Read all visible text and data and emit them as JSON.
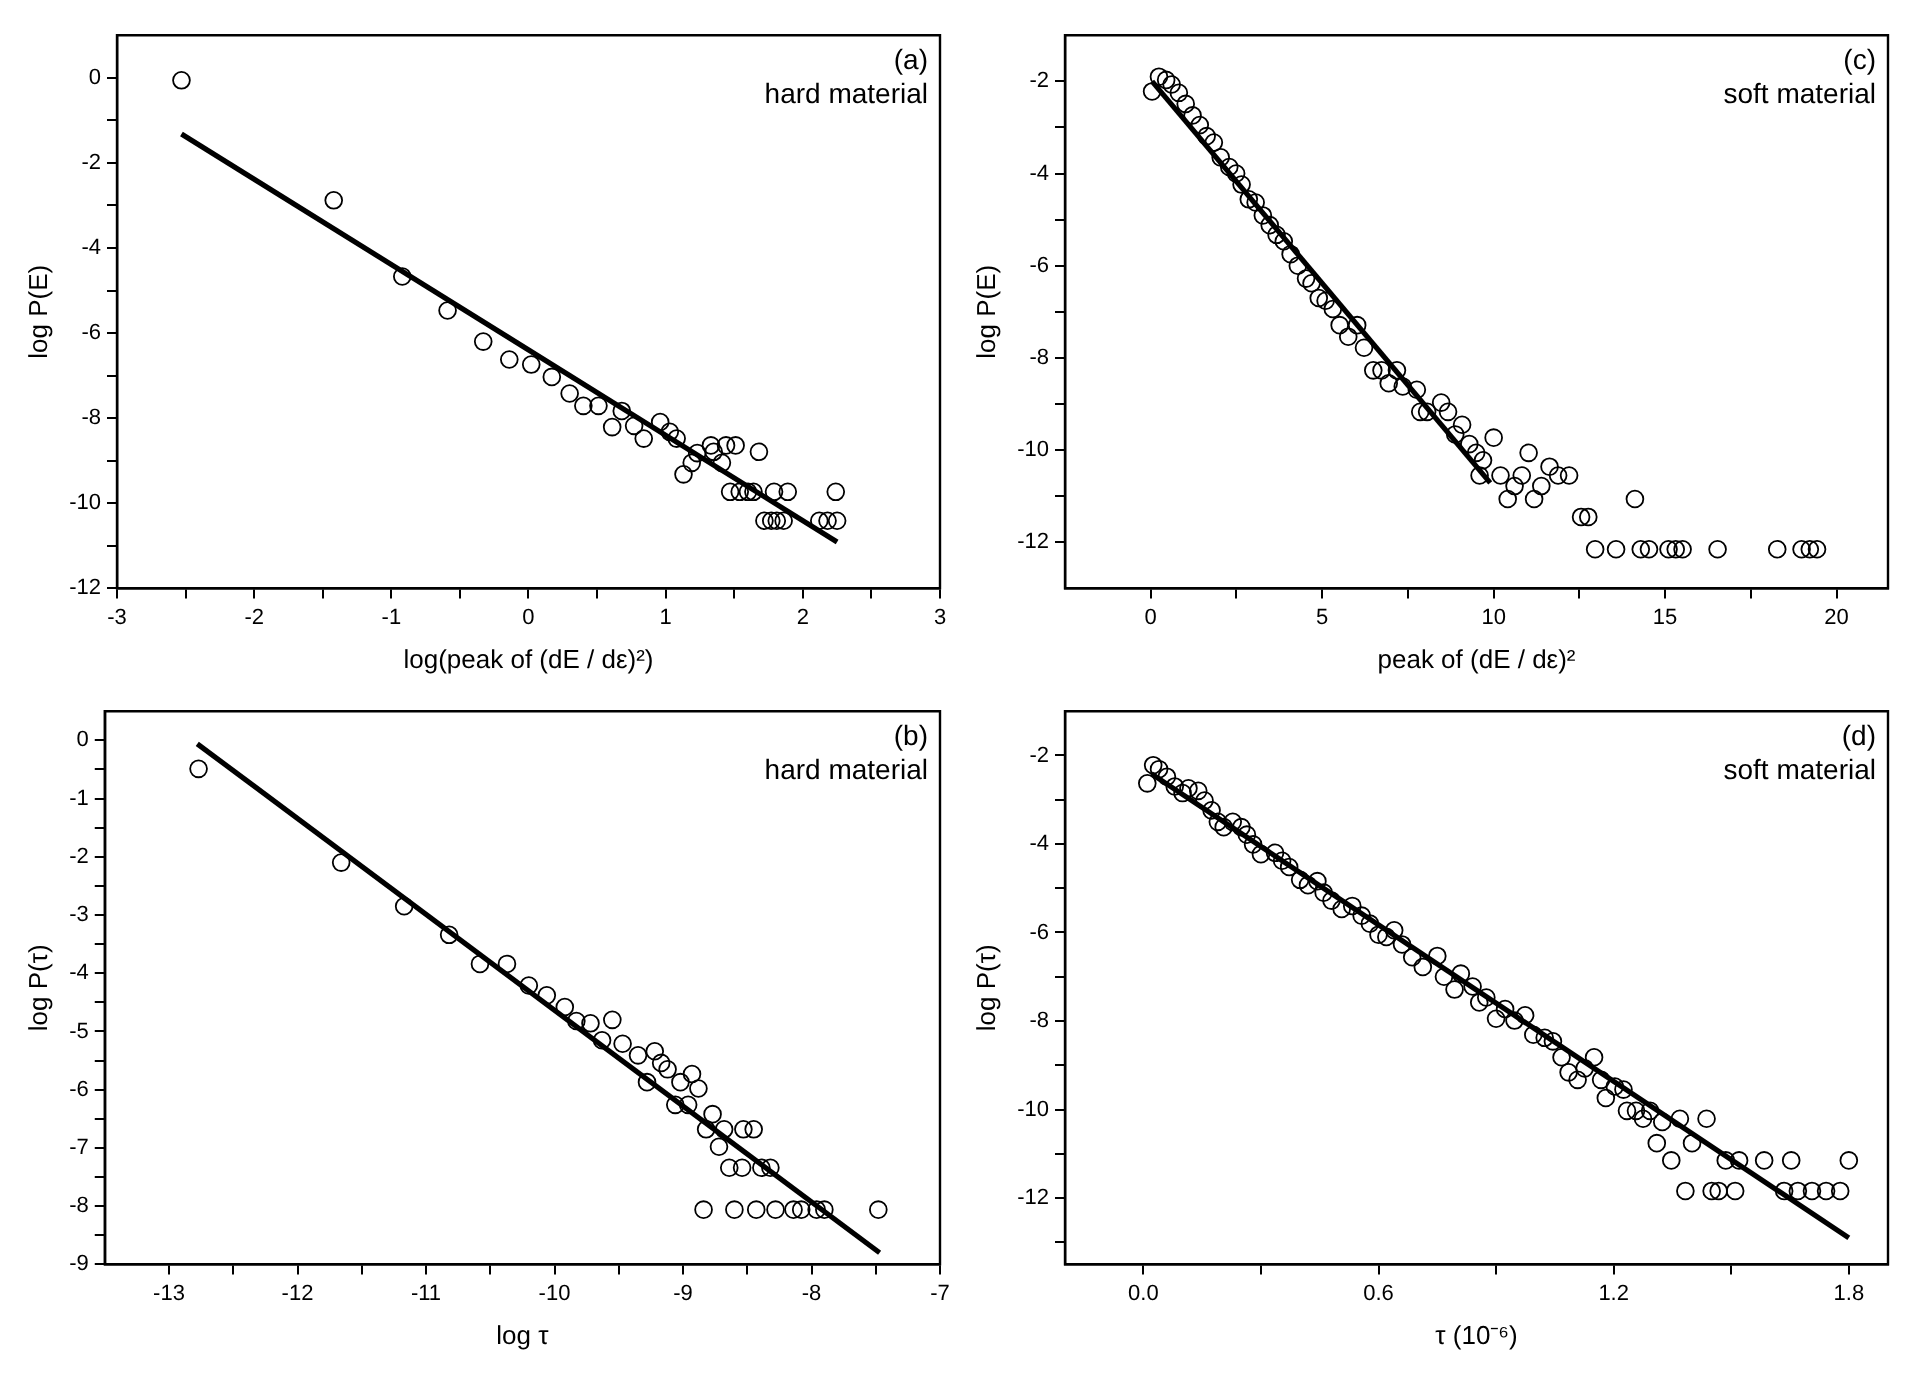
{
  "chart_data": [
    {
      "type": "scatter",
      "xlabel": "log(peak of (dE / dε)²)",
      "ylabel": "log P(E)",
      "annotations": [
        "(a)",
        "hard material"
      ],
      "legend": false,
      "grid": false,
      "xlim": [
        -3,
        3
      ],
      "ylim": [
        -12,
        1
      ],
      "xticks": [
        -3,
        {
          "value": -2.5,
          "label": null
        },
        -2,
        {
          "value": -1.5,
          "label": null
        },
        -1,
        {
          "value": -0.5,
          "label": null
        },
        0,
        {
          "value": 0.5,
          "label": null
        },
        1,
        {
          "value": 1.5,
          "label": null
        },
        2,
        {
          "value": 2.5,
          "label": null
        },
        3
      ],
      "yticks": [
        -12,
        {
          "value": -11,
          "label": null
        },
        -10,
        {
          "value": -9,
          "label": null
        },
        -8,
        {
          "value": -7,
          "label": null
        },
        -6,
        {
          "value": -5,
          "label": null
        },
        -4,
        {
          "value": -3,
          "label": null
        },
        -2,
        {
          "value": -1,
          "label": null
        },
        0
      ],
      "series": [
        {
          "marker": "circle",
          "color": "#000000",
          "x": [
            -2.53,
            -1.42,
            -0.92,
            -0.59,
            -0.33,
            -0.14,
            0.02,
            0.17,
            0.3,
            0.4,
            0.51,
            0.61,
            0.68,
            0.77,
            0.84,
            0.96,
            1.03,
            1.08,
            1.13,
            1.19,
            1.23,
            1.33,
            1.35,
            1.41,
            1.44,
            1.51,
            1.47,
            1.54,
            1.6,
            1.64,
            1.68,
            1.72,
            1.77,
            1.81,
            1.86,
            1.79,
            1.89,
            2.12,
            2.18,
            2.24,
            2.25
          ],
          "values": [
            -0.06,
            -2.88,
            -4.67,
            -5.47,
            -6.2,
            -6.62,
            -6.74,
            -7.03,
            -7.42,
            -7.71,
            -7.71,
            -8.21,
            -7.83,
            -8.18,
            -8.48,
            -8.09,
            -8.32,
            -8.48,
            -9.32,
            -9.05,
            -8.82,
            -8.64,
            -8.79,
            -9.05,
            -8.64,
            -8.64,
            -9.73,
            -9.73,
            -9.73,
            -9.73,
            -8.79,
            -10.41,
            -10.41,
            -10.41,
            -10.41,
            -9.73,
            -9.73,
            -10.41,
            -10.41,
            -9.73,
            -10.41
          ]
        },
        {
          "type": "line",
          "marker": "none",
          "color": "#000000",
          "line_style": "solid",
          "x": [
            -2.53,
            2.25
          ],
          "values": [
            -1.32,
            -10.91
          ]
        }
      ]
    },
    {
      "type": "scatter",
      "xlabel": "peak of (dE / dε)²",
      "ylabel": "log P(E)",
      "annotations": [
        "(c)",
        "soft material"
      ],
      "legend": false,
      "grid": false,
      "xlim": [
        -2.5,
        21.5
      ],
      "ylim": [
        -13,
        -1
      ],
      "xticks": [
        0,
        {
          "value": 2.5,
          "label": null
        },
        5,
        {
          "value": 7.5,
          "label": null
        },
        10,
        {
          "value": 12.5,
          "label": null
        },
        15,
        {
          "value": 17.5,
          "label": null
        },
        20
      ],
      "yticks": [
        -12,
        {
          "value": -11,
          "label": null
        },
        -10,
        {
          "value": -9,
          "label": null
        },
        -8,
        {
          "value": -7,
          "label": null
        },
        -6,
        {
          "value": -5,
          "label": null
        },
        -4,
        {
          "value": -3,
          "label": null
        },
        -2
      ],
      "series": [
        {
          "marker": "circle",
          "color": "#000000",
          "x": [
            0.04,
            0.24,
            0.45,
            0.61,
            0.82,
            1.02,
            1.22,
            1.43,
            1.63,
            1.84,
            2.04,
            2.29,
            2.49,
            2.65,
            2.86,
            3.06,
            3.27,
            3.47,
            3.67,
            3.88,
            4.08,
            4.29,
            4.53,
            4.69,
            4.9,
            5.1,
            5.31,
            5.51,
            5.76,
            6.02,
            6.22,
            6.49,
            6.73,
            6.94,
            7.18,
            7.35,
            7.76,
            7.86,
            8.06,
            8.47,
            8.67,
            9.08,
            8.88,
            9.29,
            9.49,
            9.69,
            9.59,
            10.0,
            10.2,
            10.41,
            10.61,
            10.82,
            11.02,
            11.18,
            11.39,
            11.63,
            11.88,
            12.2,
            12.55,
            12.76,
            12.96,
            13.57,
            14.12,
            14.29,
            14.53,
            15.1,
            15.31,
            15.51,
            16.53,
            18.27,
            18.98,
            19.22,
            19.43
          ],
          "values": [
            -2.22,
            -1.9,
            -1.97,
            -2.07,
            -2.25,
            -2.49,
            -2.74,
            -2.95,
            -3.19,
            -3.33,
            -3.65,
            -3.86,
            -4.0,
            -4.24,
            -4.56,
            -4.63,
            -4.91,
            -5.12,
            -5.33,
            -5.47,
            -5.75,
            -6.0,
            -6.28,
            -6.38,
            -6.7,
            -6.76,
            -6.94,
            -7.29,
            -7.54,
            -7.29,
            -7.78,
            -8.27,
            -8.27,
            -8.55,
            -8.27,
            -8.62,
            -8.69,
            -9.17,
            -9.17,
            -8.97,
            -9.17,
            -9.45,
            -9.66,
            -9.87,
            -10.06,
            -10.22,
            -10.55,
            -9.73,
            -10.55,
            -11.06,
            -10.78,
            -10.55,
            -10.06,
            -11.06,
            -10.78,
            -10.36,
            -10.55,
            -10.55,
            -11.45,
            -11.45,
            -12.15,
            -12.15,
            -11.06,
            -12.15,
            -12.15,
            -12.15,
            -12.15,
            -12.15,
            -12.15,
            -12.15,
            -12.15,
            -12.15,
            -12.15
          ]
        },
        {
          "type": "line",
          "marker": "none",
          "color": "#000000",
          "line_style": "solid",
          "x": [
            0.04,
            9.9
          ],
          "values": [
            -2.0,
            -10.71
          ]
        }
      ]
    },
    {
      "type": "scatter",
      "xlabel": "log τ",
      "ylabel": "log P(τ)",
      "annotations": [
        "(b)",
        "hard material"
      ],
      "legend": false,
      "grid": false,
      "xlim": [
        -13.5,
        -7
      ],
      "ylim": [
        -9,
        0.5
      ],
      "xticks": [
        -13,
        {
          "value": -12.5,
          "label": null
        },
        -12,
        {
          "value": -11.5,
          "label": null
        },
        -11,
        {
          "value": -10.5,
          "label": null
        },
        -10,
        {
          "value": -9.5,
          "label": null
        },
        -9,
        {
          "value": -8.5,
          "label": null
        },
        -8,
        {
          "value": -7.5,
          "label": null
        },
        -7
      ],
      "yticks": [
        -9,
        {
          "value": -8.5,
          "label": null
        },
        -8,
        {
          "value": -7.5,
          "label": null
        },
        -7,
        {
          "value": -6.5,
          "label": null
        },
        -6,
        {
          "value": -5.5,
          "label": null
        },
        -5,
        {
          "value": -4.5,
          "label": null
        },
        -4,
        {
          "value": -3.5,
          "label": null
        },
        -3,
        {
          "value": -2.5,
          "label": null
        },
        -2,
        {
          "value": -1.5,
          "label": null
        },
        -1,
        {
          "value": -0.5,
          "label": null
        },
        0
      ],
      "series": [
        {
          "marker": "circle",
          "color": "#000000",
          "x": [
            -12.77,
            -11.66,
            -11.17,
            -10.82,
            -10.58,
            -10.37,
            -10.2,
            -10.06,
            -9.92,
            -9.83,
            -9.72,
            -9.63,
            -9.55,
            -9.47,
            -9.35,
            -9.28,
            -9.22,
            -9.17,
            -9.12,
            -9.06,
            -9.02,
            -8.96,
            -8.93,
            -8.88,
            -8.84,
            -8.77,
            -8.82,
            -8.72,
            -8.68,
            -8.64,
            -8.6,
            -8.53,
            -8.45,
            -8.54,
            -8.43,
            -8.39,
            -8.32,
            -8.28,
            -8.14,
            -8.08,
            -7.96,
            -7.9,
            -7.48
          ],
          "values": [
            -0.49,
            -2.1,
            -2.85,
            -3.34,
            -3.84,
            -3.84,
            -4.21,
            -4.38,
            -4.58,
            -4.82,
            -4.86,
            -5.15,
            -4.8,
            -5.21,
            -5.41,
            -5.87,
            -5.34,
            -5.54,
            -5.65,
            -6.26,
            -5.87,
            -6.26,
            -5.73,
            -5.98,
            -8.06,
            -6.42,
            -6.68,
            -6.98,
            -6.68,
            -7.34,
            -8.06,
            -6.68,
            -6.68,
            -7.34,
            -8.06,
            -7.34,
            -7.34,
            -8.06,
            -8.06,
            -8.06,
            -8.06,
            -8.06,
            -8.06
          ]
        },
        {
          "type": "line",
          "marker": "none",
          "color": "#000000",
          "line_style": "solid",
          "x": [
            -12.78,
            -7.47
          ],
          "values": [
            -0.06,
            -8.8
          ]
        }
      ]
    },
    {
      "type": "scatter",
      "xlabel": "τ (10⁻⁶)",
      "ylabel": "log P(τ)",
      "annotations": [
        "(d)",
        "soft material"
      ],
      "legend": false,
      "grid": false,
      "xlim": [
        -0.2,
        1.9
      ],
      "ylim": [
        -13.5,
        -1
      ],
      "xticks": [
        {
          "value": 0,
          "label": "0.0"
        },
        {
          "value": 0.3,
          "label": null
        },
        0.6,
        {
          "value": 0.9,
          "label": null
        },
        1.2,
        {
          "value": 1.5,
          "label": null
        },
        1.8
      ],
      "yticks": [
        {
          "value": -13,
          "label": null
        },
        -12,
        {
          "value": -11,
          "label": null
        },
        -10,
        {
          "value": -9,
          "label": null
        },
        -8,
        {
          "value": -7,
          "label": null
        },
        -6,
        {
          "value": -5,
          "label": null
        },
        -4,
        {
          "value": -3,
          "label": null
        },
        -2
      ],
      "series": [
        {
          "marker": "circle",
          "color": "#000000",
          "x": [
            0.01,
            0.025,
            0.04,
            0.06,
            0.08,
            0.1,
            0.115,
            0.14,
            0.156,
            0.174,
            0.19,
            0.205,
            0.228,
            0.25,
            0.264,
            0.28,
            0.3,
            0.336,
            0.354,
            0.372,
            0.4,
            0.42,
            0.444,
            0.46,
            0.48,
            0.506,
            0.533,
            0.557,
            0.578,
            0.6,
            0.62,
            0.64,
            0.66,
            0.686,
            0.713,
            0.75,
            0.767,
            0.794,
            0.81,
            0.84,
            0.857,
            0.875,
            0.9,
            0.923,
            0.947,
            0.974,
            0.995,
            1.024,
            1.045,
            1.067,
            1.085,
            1.108,
            1.126,
            1.15,
            1.168,
            1.18,
            1.203,
            1.225,
            1.234,
            1.257,
            1.275,
            1.293,
            1.31,
            1.324,
            1.347,
            1.369,
            1.383,
            1.4,
            1.437,
            1.45,
            1.468,
            1.486,
            1.51,
            1.52,
            1.584,
            1.635,
            1.653,
            1.67,
            1.706,
            1.742,
            1.778,
            1.8
          ],
          "values": [
            -2.63,
            -2.22,
            -2.31,
            -2.48,
            -2.7,
            -2.85,
            -2.74,
            -2.8,
            -3.02,
            -3.24,
            -3.5,
            -3.62,
            -3.5,
            -3.62,
            -3.79,
            -4.01,
            -4.23,
            -4.2,
            -4.38,
            -4.52,
            -4.81,
            -4.93,
            -4.84,
            -5.1,
            -5.28,
            -5.47,
            -5.4,
            -5.62,
            -5.8,
            -6.05,
            -6.1,
            -5.95,
            -6.27,
            -6.56,
            -6.78,
            -6.53,
            -7.0,
            -7.29,
            -6.93,
            -7.22,
            -7.58,
            -7.47,
            -7.95,
            -7.73,
            -7.99,
            -7.87,
            -8.31,
            -8.38,
            -8.46,
            -8.82,
            -9.16,
            -9.33,
            -9.07,
            -8.82,
            -9.33,
            -9.74,
            -9.48,
            -9.55,
            -10.03,
            -10.03,
            -10.21,
            -10.03,
            -10.76,
            -10.28,
            -11.15,
            -10.21,
            -11.84,
            -10.76,
            -10.21,
            -11.84,
            -11.84,
            -11.15,
            -11.84,
            -11.15,
            -11.15,
            -11.84,
            -11.15,
            -11.84,
            -11.84,
            -11.84,
            -11.84,
            -11.15
          ]
        },
        {
          "type": "line",
          "marker": "none",
          "color": "#000000",
          "line_style": "solid",
          "x": [
            0.02,
            1.8
          ],
          "values": [
            -2.41,
            -12.9
          ]
        }
      ]
    }
  ]
}
